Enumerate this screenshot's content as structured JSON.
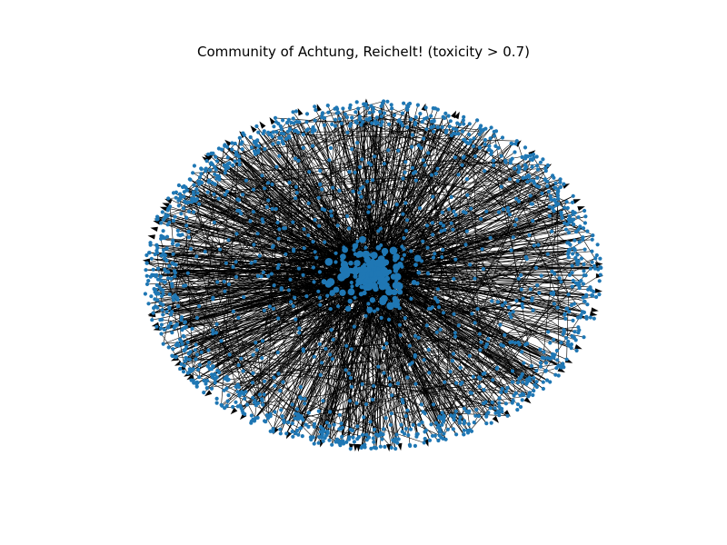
{
  "figure": {
    "title": "Community of Achtung, Reichelt! (toxicity > 0.7)"
  },
  "network": {
    "layout": "spring",
    "node_color": "#1f77b4",
    "edge_color": "#000000",
    "directed": true,
    "node_count_visual": 1800,
    "edge_count_visual": 1400
  }
}
